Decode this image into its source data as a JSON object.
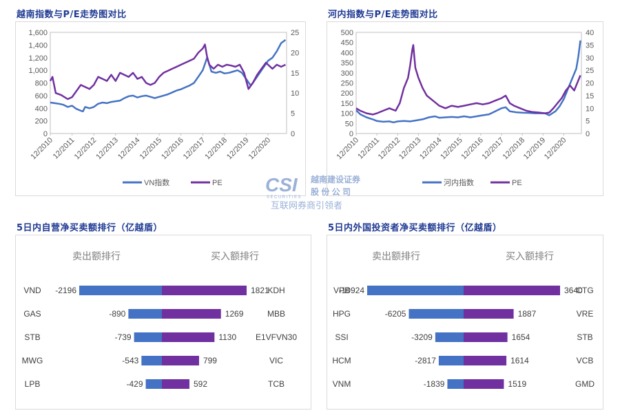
{
  "top_left": {
    "title": "越南指数与P/E走势图对比"
  },
  "top_right": {
    "title": "河内指数与P/E走势图对比"
  },
  "bottom_left": {
    "title": "5日内自营净买卖额排行（亿越盾）"
  },
  "bottom_right": {
    "title": "5日内外国投资者净买卖额排行（亿越盾）"
  },
  "watermark": {
    "logo_text": "CSI",
    "logo_sub": "SECURITIES",
    "company_line1": "越南建设证券",
    "company_line2": "股 份 公 司",
    "slogan": "互联网券商引领者"
  },
  "colors": {
    "blue": "#4472c4",
    "purple": "#7030a0",
    "axis": "#bfbfbf"
  },
  "chart_data": [
    {
      "type": "line",
      "title": "越南指数与P/E走势图对比",
      "x": [
        "12/2010",
        "12/2011",
        "12/2012",
        "12/2013",
        "12/2014",
        "12/2015",
        "12/2016",
        "12/2017",
        "12/2018",
        "12/2019",
        "12/2020"
      ],
      "ylim": [
        0,
        1600
      ],
      "yticks": [
        "0",
        "200",
        "400",
        "600",
        "800",
        "1,000",
        "1,200",
        "1,400",
        "1,600"
      ],
      "y2lim": [
        0,
        25
      ],
      "y2ticks": [
        "0",
        "5",
        "10",
        "15",
        "20",
        "25"
      ],
      "legend": "bottom",
      "series": [
        {
          "name": "VN指数",
          "axis": "left",
          "color": "#4472c4",
          "values": [
            [
              0,
              490
            ],
            [
              0.2,
              480
            ],
            [
              0.4,
              470
            ],
            [
              0.6,
              455
            ],
            [
              0.8,
              420
            ],
            [
              1.0,
              440
            ],
            [
              1.2,
              390
            ],
            [
              1.4,
              360
            ],
            [
              1.5,
              350
            ],
            [
              1.6,
              420
            ],
            [
              1.8,
              400
            ],
            [
              2.0,
              420
            ],
            [
              2.2,
              470
            ],
            [
              2.4,
              490
            ],
            [
              2.6,
              480
            ],
            [
              2.8,
              500
            ],
            [
              3.0,
              510
            ],
            [
              3.2,
              520
            ],
            [
              3.4,
              560
            ],
            [
              3.6,
              590
            ],
            [
              3.8,
              600
            ],
            [
              4.0,
              570
            ],
            [
              4.2,
              590
            ],
            [
              4.4,
              600
            ],
            [
              4.6,
              580
            ],
            [
              4.8,
              560
            ],
            [
              5.0,
              580
            ],
            [
              5.2,
              600
            ],
            [
              5.4,
              620
            ],
            [
              5.6,
              650
            ],
            [
              5.8,
              680
            ],
            [
              6.0,
              700
            ],
            [
              6.2,
              730
            ],
            [
              6.4,
              760
            ],
            [
              6.6,
              800
            ],
            [
              6.8,
              900
            ],
            [
              7.0,
              1000
            ],
            [
              7.1,
              1100
            ],
            [
              7.2,
              1200
            ],
            [
              7.25,
              1150
            ],
            [
              7.4,
              980
            ],
            [
              7.6,
              960
            ],
            [
              7.8,
              980
            ],
            [
              8.0,
              950
            ],
            [
              8.2,
              960
            ],
            [
              8.4,
              980
            ],
            [
              8.6,
              1000
            ],
            [
              8.8,
              960
            ],
            [
              9.0,
              860
            ],
            [
              9.2,
              760
            ],
            [
              9.3,
              800
            ],
            [
              9.5,
              900
            ],
            [
              9.7,
              1000
            ],
            [
              9.9,
              1100
            ],
            [
              10.0,
              1150
            ],
            [
              10.2,
              1200
            ],
            [
              10.4,
              1300
            ],
            [
              10.6,
              1430
            ],
            [
              10.8,
              1480
            ]
          ]
        },
        {
          "name": "PE",
          "axis": "right",
          "color": "#7030a0",
          "values": [
            [
              0,
              13
            ],
            [
              0.1,
              14
            ],
            [
              0.25,
              10
            ],
            [
              0.5,
              9.5
            ],
            [
              0.8,
              8.5
            ],
            [
              1.0,
              9
            ],
            [
              1.2,
              10.5
            ],
            [
              1.4,
              12
            ],
            [
              1.6,
              11.5
            ],
            [
              1.8,
              11
            ],
            [
              2.0,
              12
            ],
            [
              2.2,
              14
            ],
            [
              2.4,
              13.5
            ],
            [
              2.6,
              13
            ],
            [
              2.8,
              14.5
            ],
            [
              3.0,
              13
            ],
            [
              3.2,
              15
            ],
            [
              3.4,
              14.5
            ],
            [
              3.6,
              14
            ],
            [
              3.8,
              15
            ],
            [
              4.0,
              13.5
            ],
            [
              4.2,
              14
            ],
            [
              4.4,
              12.5
            ],
            [
              4.6,
              12
            ],
            [
              4.8,
              12.5
            ],
            [
              5.0,
              14
            ],
            [
              5.2,
              15
            ],
            [
              5.4,
              15.5
            ],
            [
              5.6,
              16
            ],
            [
              5.8,
              16.5
            ],
            [
              6.0,
              17
            ],
            [
              6.2,
              17.5
            ],
            [
              6.4,
              18
            ],
            [
              6.6,
              18.5
            ],
            [
              6.8,
              20
            ],
            [
              7.0,
              21
            ],
            [
              7.1,
              22
            ],
            [
              7.2,
              19
            ],
            [
              7.3,
              17
            ],
            [
              7.5,
              16
            ],
            [
              7.7,
              17
            ],
            [
              7.9,
              16.5
            ],
            [
              8.1,
              17
            ],
            [
              8.3,
              16.8
            ],
            [
              8.5,
              16.5
            ],
            [
              8.7,
              17
            ],
            [
              8.9,
              15
            ],
            [
              9.0,
              13
            ],
            [
              9.1,
              11
            ],
            [
              9.3,
              12.5
            ],
            [
              9.5,
              14.5
            ],
            [
              9.7,
              16
            ],
            [
              9.9,
              17.5
            ],
            [
              10.0,
              17
            ],
            [
              10.2,
              16
            ],
            [
              10.4,
              17
            ],
            [
              10.6,
              16.5
            ],
            [
              10.8,
              17
            ]
          ]
        }
      ]
    },
    {
      "type": "line",
      "title": "河内指数与P/E走势图对比",
      "x": [
        "12/2010",
        "12/2011",
        "12/2012",
        "12/2013",
        "12/2014",
        "12/2015",
        "12/2016",
        "12/2017",
        "12/2018",
        "12/2019",
        "12/2020"
      ],
      "ylim": [
        0,
        500
      ],
      "yticks": [
        "0",
        "50",
        "100",
        "150",
        "200",
        "250",
        "300",
        "350",
        "400",
        "450",
        "500"
      ],
      "y2lim": [
        0,
        40
      ],
      "y2ticks": [
        "0",
        "5",
        "10",
        "15",
        "20",
        "25",
        "30",
        "35",
        "40"
      ],
      "legend": "bottom",
      "series": [
        {
          "name": "河内指数",
          "axis": "left",
          "color": "#4472c4",
          "values": [
            [
              0,
              115
            ],
            [
              0.2,
              95
            ],
            [
              0.5,
              80
            ],
            [
              0.8,
              70
            ],
            [
              1.0,
              62
            ],
            [
              1.3,
              58
            ],
            [
              1.6,
              60
            ],
            [
              1.8,
              55
            ],
            [
              2.0,
              60
            ],
            [
              2.3,
              62
            ],
            [
              2.6,
              60
            ],
            [
              2.9,
              65
            ],
            [
              3.2,
              70
            ],
            [
              3.5,
              80
            ],
            [
              3.8,
              85
            ],
            [
              4.0,
              78
            ],
            [
              4.3,
              80
            ],
            [
              4.6,
              82
            ],
            [
              4.9,
              80
            ],
            [
              5.2,
              85
            ],
            [
              5.5,
              80
            ],
            [
              5.8,
              85
            ],
            [
              6.1,
              90
            ],
            [
              6.4,
              95
            ],
            [
              6.7,
              110
            ],
            [
              7.0,
              125
            ],
            [
              7.2,
              130
            ],
            [
              7.4,
              110
            ],
            [
              7.7,
              105
            ],
            [
              8.0,
              103
            ],
            [
              8.3,
              102
            ],
            [
              8.6,
              100
            ],
            [
              8.9,
              100
            ],
            [
              9.1,
              100
            ],
            [
              9.3,
              90
            ],
            [
              9.6,
              110
            ],
            [
              9.8,
              135
            ],
            [
              10.0,
              170
            ],
            [
              10.2,
              220
            ],
            [
              10.4,
              270
            ],
            [
              10.6,
              320
            ],
            [
              10.7,
              380
            ],
            [
              10.8,
              460
            ]
          ]
        },
        {
          "name": "PE",
          "axis": "right",
          "color": "#7030a0",
          "values": [
            [
              0,
              10
            ],
            [
              0.2,
              9
            ],
            [
              0.5,
              8
            ],
            [
              0.8,
              7.5
            ],
            [
              1.0,
              8
            ],
            [
              1.3,
              9
            ],
            [
              1.6,
              10
            ],
            [
              1.9,
              9
            ],
            [
              2.1,
              12
            ],
            [
              2.3,
              18
            ],
            [
              2.5,
              22
            ],
            [
              2.6,
              27
            ],
            [
              2.7,
              33
            ],
            [
              2.75,
              35
            ],
            [
              2.85,
              26
            ],
            [
              3.0,
              22
            ],
            [
              3.2,
              18
            ],
            [
              3.4,
              15
            ],
            [
              3.7,
              13
            ],
            [
              4.0,
              11
            ],
            [
              4.3,
              10
            ],
            [
              4.6,
              11
            ],
            [
              4.9,
              10.5
            ],
            [
              5.2,
              11
            ],
            [
              5.5,
              11.5
            ],
            [
              5.8,
              12
            ],
            [
              6.1,
              11.5
            ],
            [
              6.4,
              12
            ],
            [
              6.7,
              13
            ],
            [
              7.0,
              14
            ],
            [
              7.2,
              15
            ],
            [
              7.4,
              12
            ],
            [
              7.6,
              11
            ],
            [
              7.9,
              10
            ],
            [
              8.2,
              9
            ],
            [
              8.5,
              8.5
            ],
            [
              8.8,
              8.3
            ],
            [
              9.1,
              8
            ],
            [
              9.3,
              8.3
            ],
            [
              9.5,
              10
            ],
            [
              9.7,
              12
            ],
            [
              9.9,
              14
            ],
            [
              10.1,
              17
            ],
            [
              10.3,
              19
            ],
            [
              10.5,
              17
            ],
            [
              10.7,
              21
            ],
            [
              10.8,
              23
            ]
          ]
        }
      ]
    },
    {
      "type": "bar",
      "title": "5日内自营净买卖额排行（亿越盾）",
      "sell_header": "卖出额排行",
      "buy_header": "买入额排行",
      "rows": [
        {
          "sell_name": "VND",
          "sell_value": -2196,
          "sell_label": "-2196",
          "buy_name": "KDH",
          "buy_value": 1821,
          "buy_label": "1821"
        },
        {
          "sell_name": "GAS",
          "sell_value": -890,
          "sell_label": "-890",
          "buy_name": "MBB",
          "buy_value": 1269,
          "buy_label": "1269"
        },
        {
          "sell_name": "STB",
          "sell_value": -739,
          "sell_label": "-739",
          "buy_name": "E1VFVN30",
          "buy_value": 1130,
          "buy_label": "1130"
        },
        {
          "sell_name": "MWG",
          "sell_value": -543,
          "sell_label": "-543",
          "buy_name": "VIC",
          "buy_value": 799,
          "buy_label": "799"
        },
        {
          "sell_name": "LPB",
          "sell_value": -429,
          "sell_label": "-429",
          "buy_name": "TCB",
          "buy_value": 592,
          "buy_label": "592"
        }
      ]
    },
    {
      "type": "bar",
      "title": "5日内外国投资者净买卖额排行（亿越盾）",
      "sell_header": "卖出额排行",
      "buy_header": "买入额排行",
      "rows": [
        {
          "sell_name": "VPB",
          "sell_value": -10924,
          "sell_label": "-10924",
          "buy_name": "CTG",
          "buy_value": 3640,
          "buy_label": "3640"
        },
        {
          "sell_name": "HPG",
          "sell_value": -6205,
          "sell_label": "-6205",
          "buy_name": "VRE",
          "buy_value": 1887,
          "buy_label": "1887"
        },
        {
          "sell_name": "SSI",
          "sell_value": -3209,
          "sell_label": "-3209",
          "buy_name": "STB",
          "buy_value": 1654,
          "buy_label": "1654"
        },
        {
          "sell_name": "HCM",
          "sell_value": -2817,
          "sell_label": "-2817",
          "buy_name": "VCB",
          "buy_value": 1614,
          "buy_label": "1614"
        },
        {
          "sell_name": "VNM",
          "sell_value": -1839,
          "sell_label": "-1839",
          "buy_name": "GMD",
          "buy_value": 1519,
          "buy_label": "1519"
        }
      ]
    }
  ]
}
